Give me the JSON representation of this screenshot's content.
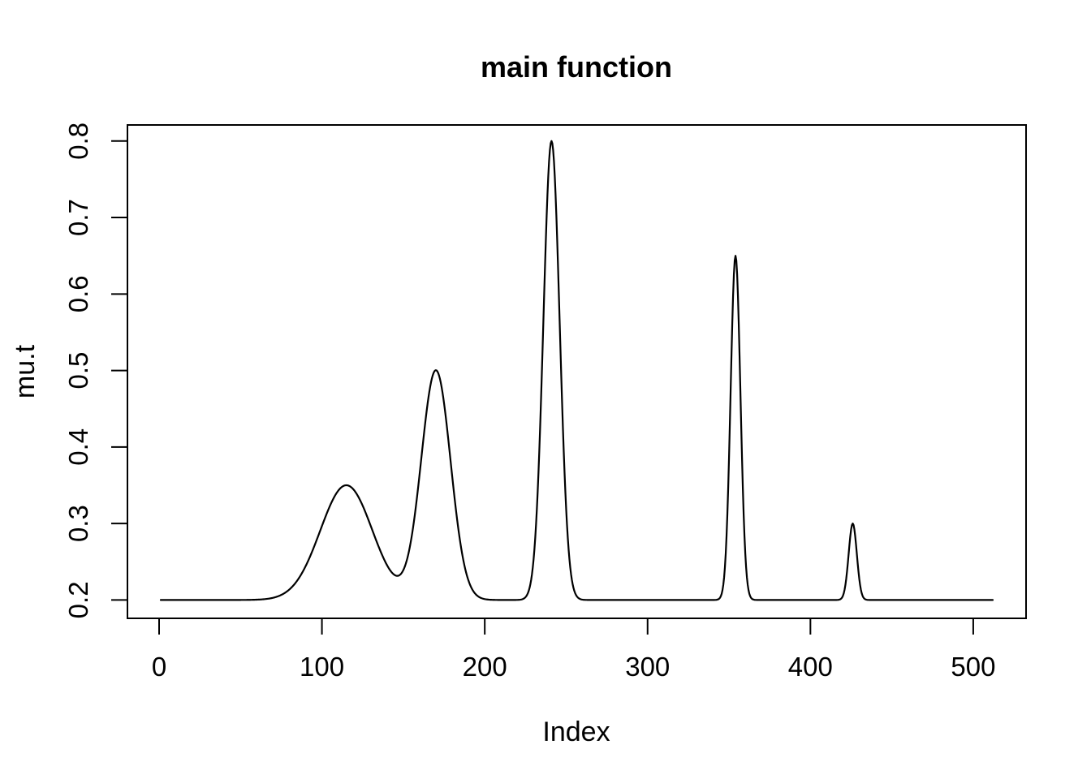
{
  "figure": {
    "background": "#ffffff",
    "foreground": "#000000"
  },
  "chart_data": {
    "type": "line",
    "title": "main function",
    "xlabel": "Index",
    "ylabel": "mu.t",
    "legend": null,
    "grid": false,
    "line_color": "#000000",
    "background": "#ffffff",
    "x_range": [
      1,
      512
    ],
    "xlim": [
      -19.44,
      532.44
    ],
    "ylim": [
      0.176,
      0.821
    ],
    "x_ticks": [
      0,
      100,
      200,
      300,
      400,
      500
    ],
    "y_ticks": [
      0.2,
      0.3,
      0.4,
      0.5,
      0.6,
      0.7,
      0.8
    ],
    "baseline": 0.2,
    "function": "f(t) = baseline + sum_i amplitude_i * exp(-(t - center_i)^2 / (2 * sigma_i^2))",
    "components": [
      {
        "center": 115,
        "amplitude": 0.15,
        "sigma": 16.0
      },
      {
        "center": 170,
        "amplitude": 0.3,
        "sigma": 9.0
      },
      {
        "center": 241,
        "amplitude": 0.6,
        "sigma": 5.0
      },
      {
        "center": 354,
        "amplitude": 0.45,
        "sigma": 3.0
      },
      {
        "center": 426,
        "amplitude": 0.1,
        "sigma": 2.5
      }
    ],
    "peaks": [
      {
        "x": 115,
        "y": 0.35
      },
      {
        "x": 170,
        "y": 0.5
      },
      {
        "x": 241,
        "y": 0.8
      },
      {
        "x": 354,
        "y": 0.65
      },
      {
        "x": 426,
        "y": 0.3
      }
    ],
    "valley": {
      "x": 148,
      "y": 0.235
    }
  }
}
